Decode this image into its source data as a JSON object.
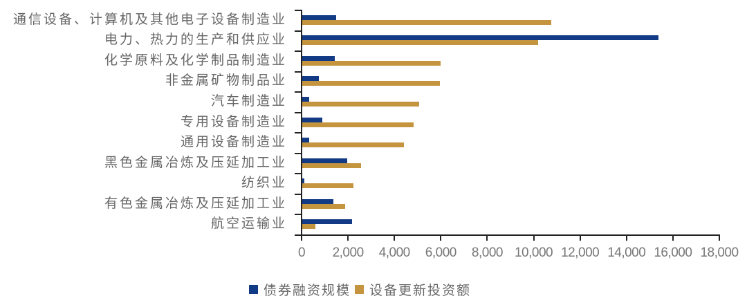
{
  "chart_data": {
    "type": "bar",
    "orientation": "horizontal",
    "title": "",
    "xlabel": "",
    "ylabel": "",
    "xlim": [
      0,
      18000
    ],
    "xticks": [
      0,
      2000,
      4000,
      6000,
      8000,
      10000,
      12000,
      14000,
      16000,
      18000
    ],
    "xtick_labels": [
      "0",
      "2,000",
      "4,000",
      "6,000",
      "8,000",
      "10,000",
      "12,000",
      "14,000",
      "16,000",
      "18,000"
    ],
    "grid": false,
    "legend_position": "bottom",
    "categories": [
      "通信设备、计算机及其他电子设备制造业",
      "电力、热力的生产和供应业",
      "化学原料及化学制品制造业",
      "非金属矿物制品业",
      "汽车制造业",
      "专用设备制造业",
      "通用设备制造业",
      "黑色金属冶炼及压延加工业",
      "纺织业",
      "有色金属冶炼及压延加工业",
      "航空运输业"
    ],
    "series": [
      {
        "name": "债券融资规模",
        "color": "#123a85",
        "values": [
          1460,
          15360,
          1400,
          710,
          300,
          860,
          300,
          1940,
          90,
          1340,
          2140
        ]
      },
      {
        "name": "设备更新投资额",
        "color": "#c4943f",
        "values": [
          10740,
          10150,
          5950,
          5920,
          5030,
          4790,
          4370,
          2530,
          2200,
          1840,
          570
        ]
      }
    ]
  },
  "legend": {
    "items": [
      {
        "label": "债券融资规模",
        "color": "#123a85"
      },
      {
        "label": "设备更新投资额",
        "color": "#c4943f"
      }
    ]
  }
}
